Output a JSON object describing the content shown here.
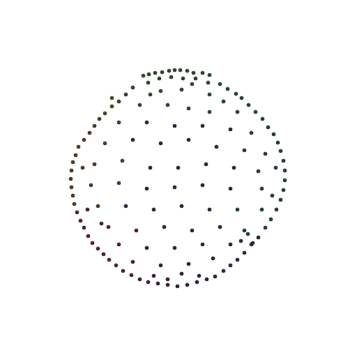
{
  "chart_data": {
    "type": "scatter",
    "marker": "dot",
    "tick_labels": false,
    "grid": false,
    "xlim": [
      0,
      512
    ],
    "ylim": [
      0,
      512
    ],
    "x": [
      205,
      213,
      222,
      232,
      242,
      250,
      258,
      268,
      277,
      290,
      300,
      212,
      228,
      245,
      262,
      280,
      298,
      315,
      326,
      338,
      190,
      180,
      170,
      160,
      150,
      142,
      135,
      128,
      120,
      112,
      108,
      104,
      102,
      101,
      102,
      104,
      106,
      110,
      115,
      120,
      126,
      132,
      140,
      148,
      156,
      166,
      176,
      188,
      200,
      212,
      226,
      240,
      254,
      268,
      282,
      296,
      308,
      320,
      330,
      340,
      350,
      360,
      370,
      380,
      388,
      396,
      402,
      406,
      408,
      408,
      406,
      402,
      398,
      392,
      384,
      376,
      366,
      356,
      346,
      230,
      260,
      300,
      320,
      200,
      240,
      270,
      300,
      340,
      170,
      210,
      250,
      290,
      330,
      360,
      150,
      190,
      230,
      270,
      310,
      350,
      380,
      135,
      175,
      215,
      255,
      295,
      335,
      370,
      130,
      170,
      210,
      250,
      290,
      330,
      375,
      140,
      180,
      220,
      260,
      300,
      340,
      375,
      155,
      195,
      235,
      275,
      315,
      350,
      170,
      210,
      250,
      290,
      330,
      190,
      230,
      270,
      305,
      220,
      260,
      355,
      362,
      345,
      160,
      118,
      125,
      395,
      390,
      275,
      215,
      145,
      240,
      285
    ],
    "values": [
      404,
      406,
      408,
      409,
      411,
      412,
      412,
      411,
      408,
      408,
      405,
      394,
      400,
      402,
      400,
      400,
      394,
      392,
      385,
      378,
      387,
      377,
      367,
      360,
      350,
      342,
      332,
      322,
      312,
      302,
      290,
      280,
      268,
      256,
      244,
      232,
      220,
      208,
      196,
      186,
      174,
      164,
      156,
      148,
      140,
      132,
      124,
      118,
      112,
      108,
      106,
      104,
      102,
      104,
      108,
      112,
      116,
      124,
      132,
      140,
      150,
      162,
      172,
      186,
      198,
      212,
      226,
      240,
      254,
      268,
      282,
      296,
      308,
      320,
      330,
      342,
      352,
      362,
      372,
      382,
      384,
      377,
      367,
      362,
      362,
      357,
      352,
      352,
      337,
      337,
      332,
      332,
      327,
      322,
      307,
      312,
      307,
      312,
      302,
      297,
      292,
      277,
      282,
      272,
      272,
      277,
      272,
      267,
      247,
      250,
      242,
      244,
      247,
      242,
      242,
      217,
      217,
      212,
      217,
      212,
      212,
      212,
      187,
      182,
      187,
      182,
      187,
      182,
      162,
      157,
      157,
      162,
      162,
      137,
      132,
      134,
      142,
      117,
      120,
      177,
      164,
      167,
      372,
      272,
      212,
      272,
      232,
      392,
      377,
      192,
      112,
      117
    ],
    "colors": [
      "#2e4a2a",
      "#2e4a2a",
      "#2e4a2a",
      "#2e4a2a",
      "#2e4a2a",
      "#2e4a2a",
      "#2e4a2a",
      "#2e4a2a",
      "#2e4a2a",
      "#2e4a2a",
      "#1f4a3a",
      "#2e4a2a",
      "#2e4a2a",
      "#2e4a2a",
      "#2e4a2a",
      "#2e4a2a",
      "#2e4a2a",
      "#1f4a3a",
      "#1f4a3a",
      "#1f4a3a",
      "#2e4a2a",
      "#2e4a2a",
      "#2e4a2a",
      "#4a4a22",
      "#4a4a22",
      "#553a22",
      "#553a22",
      "#553a22",
      "#553a22",
      "#553a22",
      "#553a22",
      "#553a22",
      "#553a22",
      "#553a22",
      "#553a22",
      "#553a22",
      "#553a22",
      "#5a1f2a",
      "#5a1f2a",
      "#5a1f2a",
      "#5a1f2a",
      "#5a1f2a",
      "#5a1f2a",
      "#5a1f2a",
      "#5a1f2a",
      "#5a1f2a",
      "#5a1f2a",
      "#5a1f2a",
      "#3f1a3a",
      "#3f1a3a",
      "#3f1a3a",
      "#3f1a3a",
      "#3f1a3a",
      "#3f1a3a",
      "#3f1a3a",
      "#3f1a3a",
      "#3f1a3a",
      "#2a2a48",
      "#2a2a48",
      "#2a2a48",
      "#2a2a48",
      "#2a2a48",
      "#2a2a48",
      "#1e4048",
      "#1e4048",
      "#1e4048",
      "#1e4048",
      "#1e4048",
      "#1e4048",
      "#1e4048",
      "#1e4048",
      "#1e4048",
      "#1e4048",
      "#1e4048",
      "#1e4048",
      "#1e4048",
      "#1f4a3a",
      "#1f4a3a",
      "#1f4a3a",
      "#2e4a2a",
      "#2e4a2a",
      "#1f4a3a",
      "#1f4a3a",
      "#2e4a2a",
      "#2e4a2a",
      "#2e4a2a",
      "#1f4a3a",
      "#1f4a3a",
      "#553a22",
      "#1c2a48",
      "#1c2a48",
      "#1c2a48",
      "#1c2a48",
      "#1e4048",
      "#553a22",
      "#1c2a48",
      "#1c2a48",
      "#1c2a48",
      "#1c2a48",
      "#1e4048",
      "#1e4048",
      "#553a22",
      "#553a22",
      "#1c2a48",
      "#1c2a48",
      "#1c2a48",
      "#1c2a48",
      "#1e4048",
      "#553a22",
      "#553a22",
      "#1c2a48",
      "#1c2a48",
      "#1c2a48",
      "#1c2a48",
      "#1e4048",
      "#553a22",
      "#1c2a48",
      "#1c2a48",
      "#1c2a48",
      "#1c2a48",
      "#1e4048",
      "#1e4048",
      "#5a1f2a",
      "#5a1f2a",
      "#1c2a48",
      "#1c2a48",
      "#1c2a48",
      "#1e4048",
      "#5a1f2a",
      "#3f1a3a",
      "#3f1a3a",
      "#3f1a3a",
      "#2a2a48",
      "#5a1f2a",
      "#3f1a3a",
      "#3f1a3a",
      "#3f1a3a",
      "#3f1a3a",
      "#3f1a3a",
      "#1e4048",
      "#2a2a48",
      "#2a2a48",
      "#4a4a22",
      "#553a22",
      "#5a1f2a",
      "#1e4048",
      "#1e4048",
      "#2e4a2a",
      "#2e4a2a",
      "#5a1f2a",
      "#3f1a3a",
      "#3f1a3a"
    ]
  }
}
